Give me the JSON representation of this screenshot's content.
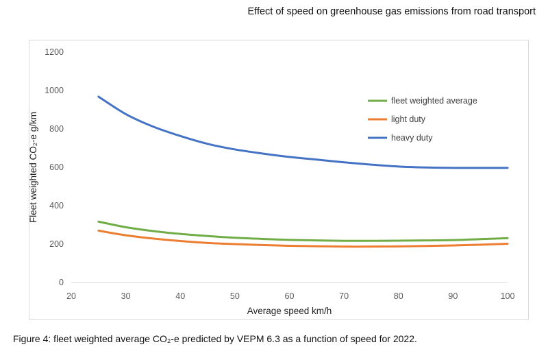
{
  "heading": "Effect of speed on greenhouse gas emissions from road transport",
  "caption": "Figure 4: fleet weighted average CO₂-e predicted by VEPM 6.3 as a function of speed for 2022.",
  "chart_data": {
    "type": "line",
    "title": "",
    "xlabel": "Average speed km/h",
    "ylabel": "Fleet weighted CO₂-e g/km",
    "xlim": [
      20,
      100
    ],
    "ylim": [
      0,
      1200
    ],
    "xticks": [
      20,
      30,
      40,
      50,
      60,
      70,
      80,
      90,
      100
    ],
    "yticks": [
      0,
      200,
      400,
      600,
      800,
      1000,
      1200
    ],
    "grid": false,
    "legend_position": "top-right",
    "x": [
      25,
      30,
      35,
      40,
      45,
      50,
      55,
      60,
      65,
      70,
      75,
      80,
      85,
      90,
      95,
      100
    ],
    "series": [
      {
        "name": "fleet weighted average",
        "color": "#70ad47",
        "values": [
          317,
          288,
          268,
          253,
          242,
          233,
          227,
          222,
          219,
          217,
          217,
          218,
          219,
          221,
          226,
          231
        ]
      },
      {
        "name": "light duty",
        "color": "#ed7d31",
        "values": [
          270,
          246,
          229,
          216,
          206,
          200,
          195,
          191,
          189,
          187,
          187,
          188,
          190,
          193,
          197,
          202
        ]
      },
      {
        "name": "heavy duty",
        "color": "#4472c4",
        "values": [
          968,
          877,
          812,
          763,
          722,
          693,
          672,
          654,
          640,
          626,
          614,
          604,
          599,
          597,
          597,
          597
        ]
      }
    ]
  }
}
